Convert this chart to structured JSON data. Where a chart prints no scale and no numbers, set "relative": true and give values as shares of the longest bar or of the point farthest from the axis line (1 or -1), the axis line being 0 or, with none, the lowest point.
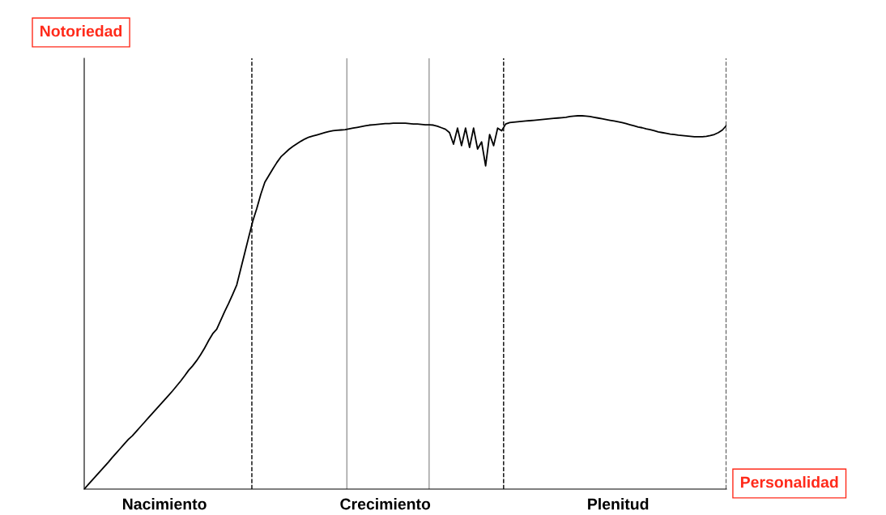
{
  "chart_data": {
    "type": "line",
    "relative": true,
    "xlabel": "Personalidad",
    "annotations": [
      "Notoriedad"
    ],
    "categories": [
      null,
      null,
      null,
      null,
      null,
      null,
      null,
      null,
      null,
      null,
      null,
      null,
      null,
      null,
      null,
      null,
      null,
      null,
      null,
      null,
      "Nacimiento",
      null,
      null,
      null,
      null,
      null,
      null,
      null,
      null,
      null,
      null,
      null,
      null,
      null,
      null,
      null,
      null,
      null,
      null,
      null,
      null,
      null,
      null,
      null,
      null,
      null,
      null,
      null,
      null,
      null,
      null,
      null,
      null,
      null,
      null,
      null,
      null,
      null,
      null,
      null,
      null,
      null,
      null,
      null,
      null,
      null,
      null,
      null,
      null,
      null,
      null,
      null,
      null,
      null,
      null,
      "Crecimiento",
      null,
      null,
      null,
      null,
      null,
      null,
      null,
      null,
      null,
      null,
      null,
      null,
      null,
      null,
      null,
      null,
      null,
      null,
      null,
      null,
      null,
      null,
      null,
      null,
      null,
      null,
      null,
      null,
      null,
      null,
      null,
      null,
      null,
      null,
      null,
      null,
      null,
      null,
      null,
      null,
      null,
      null,
      null,
      null,
      null,
      null,
      null,
      null,
      null,
      null,
      null,
      null,
      null,
      null,
      null,
      null,
      null,
      "Plenitud",
      null,
      null,
      null,
      null,
      null,
      null,
      null,
      null,
      null,
      null,
      null,
      null,
      null,
      null,
      null,
      null,
      null,
      null,
      null,
      null,
      null,
      null,
      null,
      null,
      null,
      null,
      null
    ],
    "tick_labels": "x",
    "marker": "none",
    "line_style": "solid",
    "series": [
      {
        "color": "#000000",
        "values": [
          0,
          0.012,
          0.024,
          0.036,
          0.048,
          0.06,
          0.072,
          0.085,
          0.097,
          0.109,
          0.121,
          0.133,
          0.143,
          0.155,
          0.167,
          0.179,
          0.191,
          0.203,
          0.215,
          0.227,
          0.239,
          0.251,
          0.263,
          0.276,
          0.289,
          0.303,
          0.318,
          0.33,
          0.344,
          0.36,
          0.378,
          0.398,
          0.416,
          0.428,
          0.452,
          0.476,
          0.498,
          0.522,
          0.547,
          0.59,
          0.633,
          0.676,
          0.718,
          0.752,
          0.79,
          0.822,
          0.84,
          0.858,
          0.875,
          0.89,
          0.9,
          0.91,
          0.918,
          0.925,
          0.932,
          0.938,
          0.943,
          0.946,
          0.949,
          0.952,
          0.955,
          0.958,
          0.96,
          0.961,
          0.962,
          0.963,
          0.965,
          0.967,
          0.969,
          0.971,
          0.973,
          0.975,
          0.976,
          0.977,
          0.978,
          0.979,
          0.979,
          0.98,
          0.98,
          0.98,
          0.98,
          0.979,
          0.978,
          0.978,
          0.977,
          0.976,
          0.976,
          0.975,
          0.972,
          0.968,
          0.964,
          0.955,
          0.924,
          0.967,
          0.92,
          0.967,
          0.915,
          0.967,
          0.911,
          0.93,
          0.866,
          0.95,
          0.92,
          0.967,
          0.96,
          0.978,
          0.982,
          0.983,
          0.984,
          0.985,
          0.986,
          0.987,
          0.988,
          0.989,
          0.99,
          0.991,
          0.992,
          0.993,
          0.994,
          0.995,
          0.996,
          0.998,
          0.999,
          1.0,
          1.0,
          0.999,
          0.998,
          0.996,
          0.994,
          0.992,
          0.99,
          0.988,
          0.986,
          0.984,
          0.982,
          0.979,
          0.976,
          0.973,
          0.97,
          0.968,
          0.965,
          0.963,
          0.96,
          0.957,
          0.955,
          0.953,
          0.951,
          0.95,
          0.948,
          0.947,
          0.946,
          0.945,
          0.944,
          0.944,
          0.944,
          0.945,
          0.947,
          0.95,
          0.955,
          0.962,
          0.974
        ]
      }
    ],
    "grid": false
  }
}
